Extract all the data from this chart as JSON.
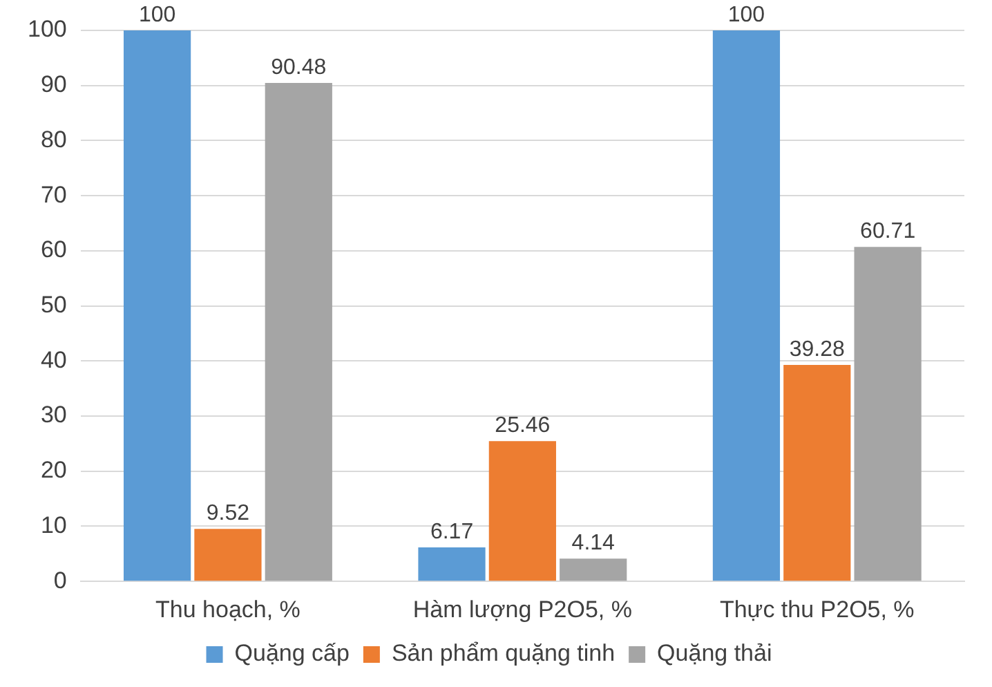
{
  "chart_data": {
    "type": "bar",
    "categories": [
      "Thu hoạch, %",
      "Hàm lượng P2O5, %",
      "Thực thu P2O5, %"
    ],
    "series": [
      {
        "name": "Quặng cấp",
        "color": "#5b9bd5",
        "values": [
          100,
          6.17,
          100
        ]
      },
      {
        "name": "Sản phẩm quặng tinh",
        "color": "#ed7d31",
        "values": [
          9.52,
          25.46,
          39.28
        ]
      },
      {
        "name": "Quặng thải",
        "color": "#a5a5a5",
        "values": [
          90.48,
          4.14,
          60.71
        ]
      }
    ],
    "ylim": [
      0,
      100
    ],
    "yticks": [
      0,
      10,
      20,
      30,
      40,
      50,
      60,
      70,
      80,
      90,
      100
    ],
    "grid": "y",
    "legend": "bottom",
    "data_labels": true
  }
}
